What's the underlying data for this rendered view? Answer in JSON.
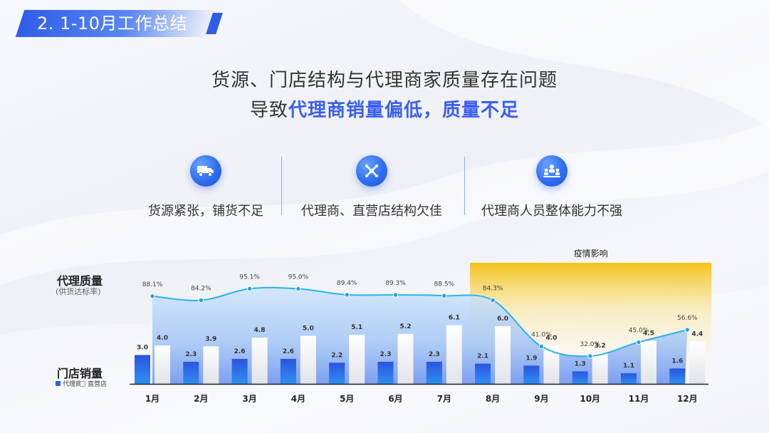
{
  "header": {
    "title": "2. 1-10月工作总结"
  },
  "headline": {
    "line1": "货源、门店结构与代理商家质量存在问题",
    "line2_prefix": "导致",
    "line2_highlight": "代理商销量偏低，质量不足"
  },
  "features": [
    {
      "icon": "truck-icon",
      "label": "货源紧张，铺货不足"
    },
    {
      "icon": "structure-icon",
      "label": "代理商、直营店结构欠佳"
    },
    {
      "icon": "team-icon",
      "label": "代理商人员整体能力不强"
    }
  ],
  "row_labels": {
    "quality": "代理质量",
    "quality_sub": "(供货达标率)",
    "sales": "门店销量"
  },
  "legend": {
    "agent": "代理商",
    "direct": "直营店"
  },
  "chart_data": {
    "type": "bar+line",
    "categories": [
      "1月",
      "2月",
      "3月",
      "4月",
      "5月",
      "6月",
      "7月",
      "8月",
      "9月",
      "10月",
      "11月",
      "12月"
    ],
    "series": [
      {
        "name": "代理商",
        "type": "bar",
        "values": [
          3.0,
          2.3,
          2.6,
          2.6,
          2.2,
          2.3,
          2.3,
          2.1,
          1.9,
          1.3,
          1.1,
          1.6
        ],
        "color": "#2e63e6"
      },
      {
        "name": "直营店",
        "type": "bar",
        "values": [
          4.0,
          3.9,
          4.8,
          5.0,
          5.1,
          5.2,
          6.1,
          6.0,
          4.0,
          3.2,
          4.5,
          4.4
        ],
        "color": "#ebedf2"
      },
      {
        "name": "代理质量",
        "type": "line",
        "values": [
          88.1,
          84.2,
          95.1,
          95.0,
          89.4,
          89.3,
          88.5,
          84.3,
          41.0,
          32.0,
          45.0,
          56.6
        ],
        "labels": [
          "88.1%",
          "84.2%",
          "95.1%",
          "95.0%",
          "89.4%",
          "89.3%",
          "88.5%",
          "84.3%",
          "41.0%",
          "32.0%",
          "45.0%",
          "56.6%"
        ],
        "color": "#2bb3e8"
      }
    ],
    "annotation": {
      "label": "疫情影响",
      "from": "8月",
      "to": "12月",
      "color": "#f5c21b"
    }
  }
}
